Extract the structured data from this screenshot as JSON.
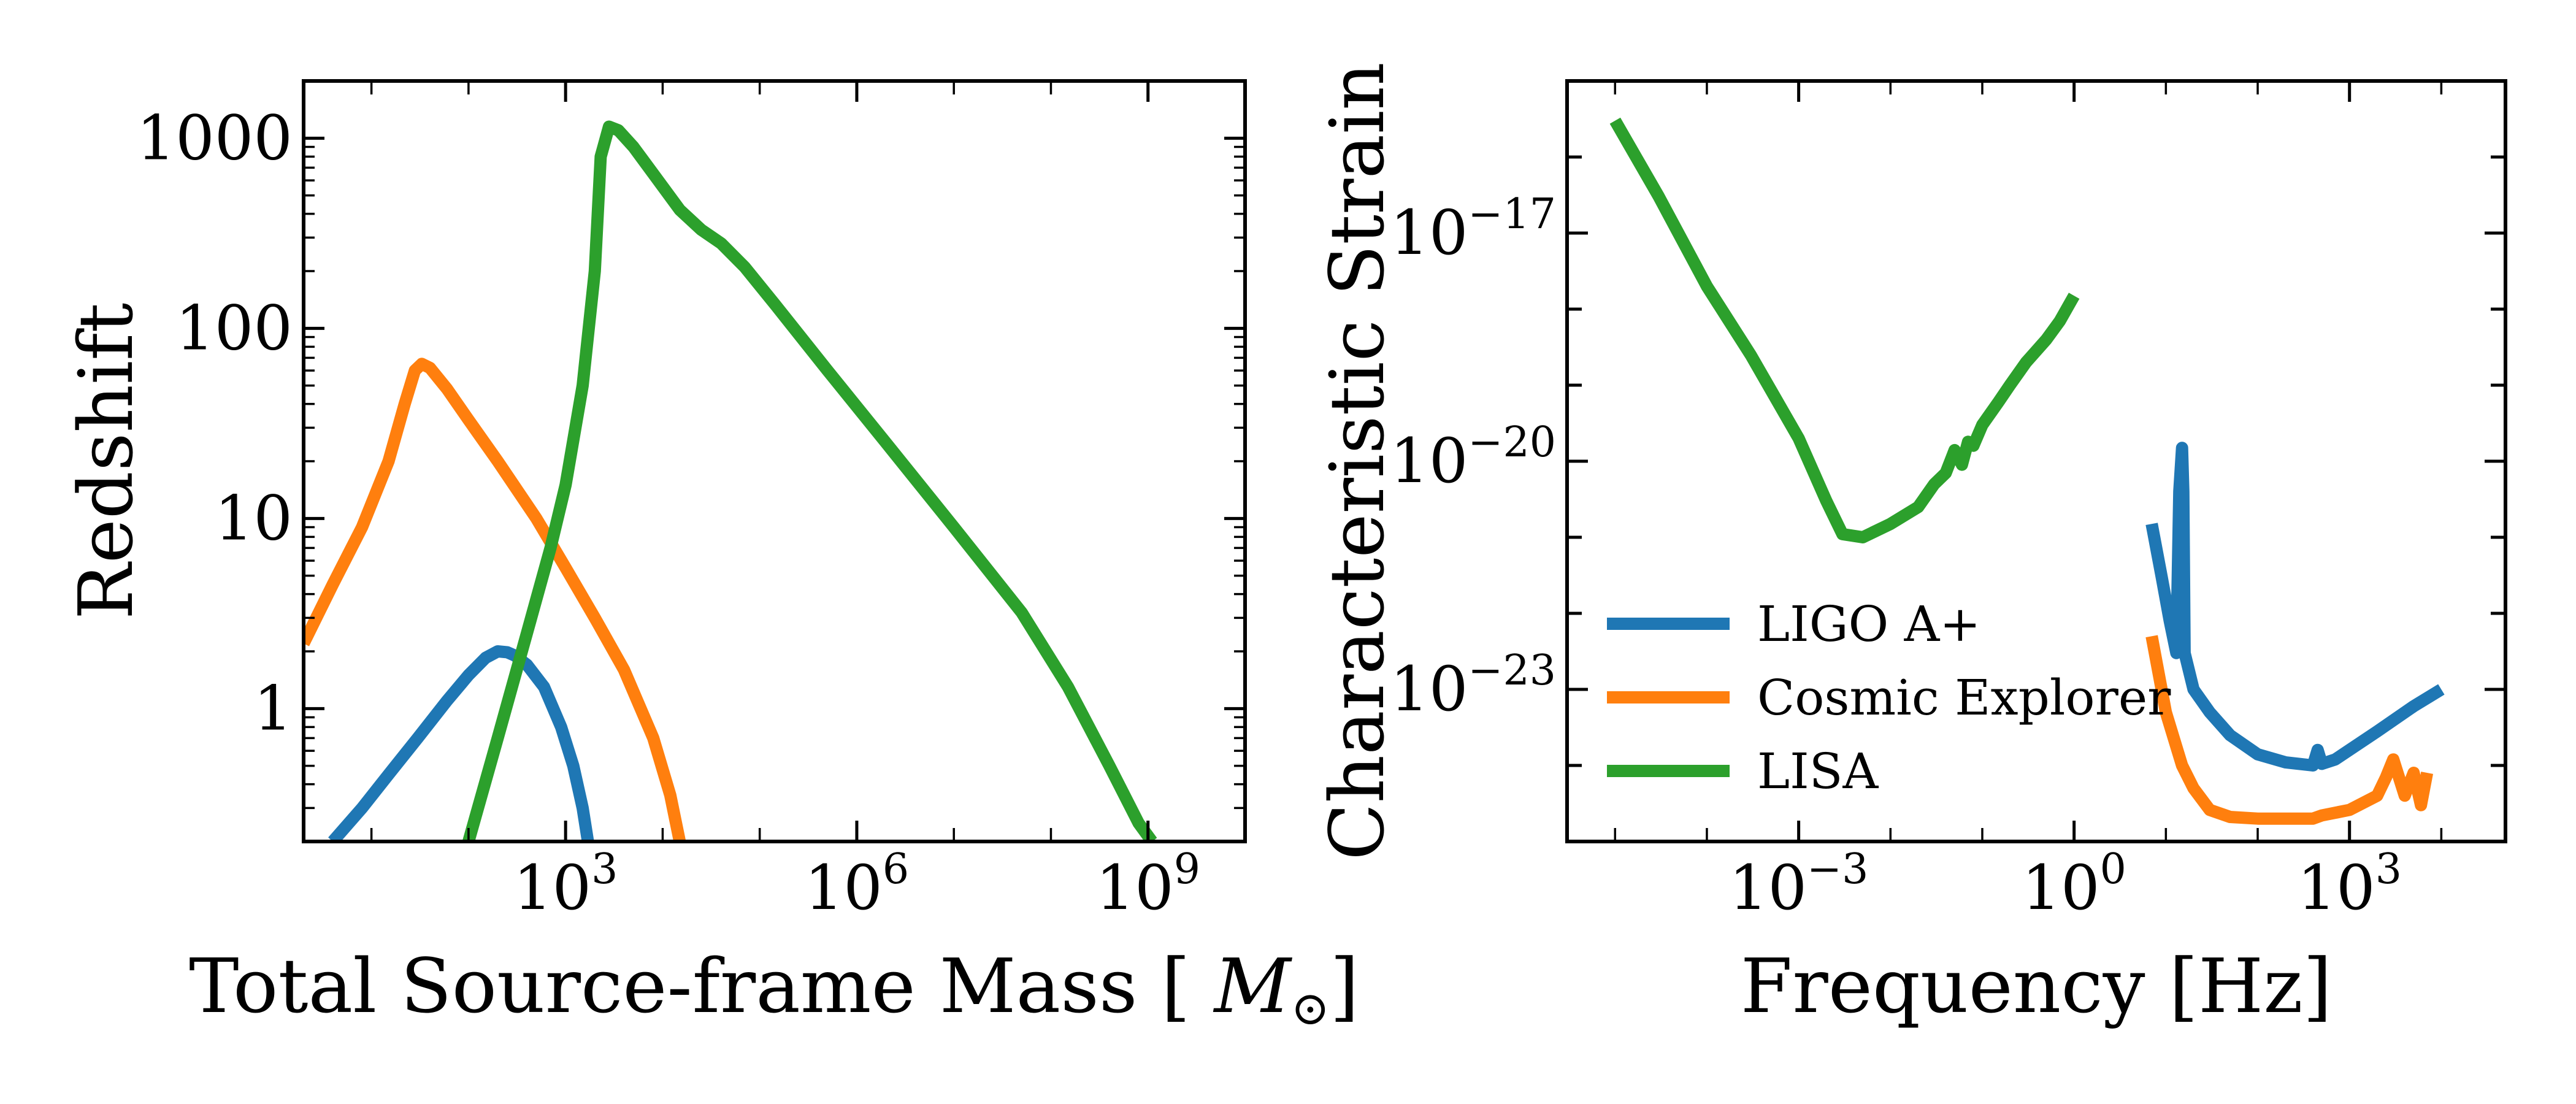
{
  "colors": {
    "blue": "#1f77b4",
    "orange": "#ff7f0e",
    "green": "#2ca02c"
  },
  "chart_data": [
    {
      "type": "line",
      "xlabel": "Total Source-frame Mass [M⊙]",
      "ylabel": "Redshift",
      "xscale": "log",
      "yscale": "log",
      "xlim": [
        2.0,
        10000000000.0
      ],
      "ylim": [
        0.2,
        2000
      ],
      "xticks": [
        {
          "value": 1000,
          "base": "10",
          "exp": "3"
        },
        {
          "value": 1000000,
          "base": "10",
          "exp": "6"
        },
        {
          "value": 1000000000,
          "base": "10",
          "exp": "9"
        }
      ],
      "yticks": [
        {
          "value": 1,
          "label": "1"
        },
        {
          "value": 10,
          "label": "10"
        },
        {
          "value": 100,
          "label": "100"
        },
        {
          "value": 1000,
          "label": "1000"
        }
      ],
      "legend": "none",
      "series": [
        {
          "color": "#1f77b4",
          "x": [
            4,
            8,
            15,
            30,
            60,
            100,
            150,
            200,
            250,
            300,
            400,
            600,
            900,
            1200,
            1500,
            1700
          ],
          "y": [
            0.2,
            0.3,
            0.45,
            0.7,
            1.1,
            1.5,
            1.85,
            2.0,
            1.98,
            1.9,
            1.7,
            1.3,
            0.8,
            0.5,
            0.3,
            0.2
          ]
        },
        {
          "color": "#ff7f0e",
          "x": [
            2,
            4,
            8,
            15,
            22,
            28,
            33,
            40,
            60,
            100,
            200,
            500,
            1000,
            2000,
            4000,
            8000,
            12000,
            15000
          ],
          "y": [
            2.2,
            4.5,
            9,
            20,
            40,
            60,
            65,
            62,
            48,
            33,
            20,
            10,
            5.5,
            3,
            1.6,
            0.7,
            0.35,
            0.2
          ]
        },
        {
          "color": "#2ca02c",
          "x": [
            100,
            200,
            400,
            700,
            1000,
            1500,
            2000,
            2300,
            2800,
            3500,
            5000,
            8000,
            15000,
            25000,
            40000,
            70000,
            150000,
            500000,
            2000000,
            10000000,
            50000000,
            150000000,
            400000000,
            800000000,
            1100000000
          ],
          "y": [
            0.2,
            0.7,
            2.5,
            7,
            15,
            50,
            200,
            800,
            1150,
            1100,
            900,
            650,
            420,
            330,
            280,
            210,
            130,
            60,
            25,
            9,
            3.2,
            1.3,
            0.5,
            0.25,
            0.2
          ]
        }
      ]
    },
    {
      "type": "line",
      "xlabel": "Frequency [Hz]",
      "ylabel": "Characteristic Strain",
      "xscale": "log",
      "yscale": "log",
      "xlim": [
        3e-06,
        50000.0
      ],
      "ylim": [
        1e-25,
        1e-15
      ],
      "xticks": [
        {
          "value": 0.001,
          "base": "10",
          "exp": "−3"
        },
        {
          "value": 1,
          "base": "10",
          "exp": "0"
        },
        {
          "value": 1000,
          "base": "10",
          "exp": "3"
        }
      ],
      "yticks": [
        {
          "value": 1e-23,
          "base": "10",
          "exp": "−23"
        },
        {
          "value": 1e-20,
          "base": "10",
          "exp": "−20"
        },
        {
          "value": 1e-17,
          "base": "10",
          "exp": "−17"
        }
      ],
      "legend": "lower-left",
      "series": [
        {
          "name": "LIGO A+",
          "color": "#1f77b4",
          "x": [
            7,
            9,
            11,
            13,
            14,
            15,
            15.5,
            16,
            20,
            30,
            50,
            100,
            200,
            400,
            450,
            500,
            700,
            1000,
            2000,
            5000,
            10000
          ],
          "y": [
            1.5e-21,
            3e-22,
            8e-23,
            3e-23,
            4e-21,
            1.5e-20,
            4e-21,
            3e-23,
            1e-23,
            5e-24,
            2.5e-24,
            1.4e-24,
            1.1e-24,
            1e-24,
            1.6e-24,
            1.05e-24,
            1.2e-24,
            1.6e-24,
            2.8e-24,
            6e-24,
            1e-23
          ]
        },
        {
          "name": "Cosmic Explorer",
          "color": "#ff7f0e",
          "x": [
            7,
            10,
            15,
            20,
            30,
            50,
            100,
            300,
            400,
            500,
            1000,
            2000,
            2500,
            3000,
            4000,
            5000,
            6000,
            7000
          ],
          "y": [
            5e-23,
            5e-24,
            1e-24,
            5e-25,
            2.6e-25,
            2.1e-25,
            2e-25,
            2e-25,
            2e-25,
            2.2e-25,
            2.6e-25,
            4e-25,
            7e-25,
            1.2e-24,
            4e-25,
            8e-25,
            3e-25,
            8e-25
          ]
        },
        {
          "name": "LISA",
          "color": "#2ca02c",
          "x": [
            1e-05,
            3e-05,
            0.0001,
            0.0003,
            0.001,
            0.002,
            0.003,
            0.005,
            0.01,
            0.02,
            0.03,
            0.04,
            0.05,
            0.06,
            0.07,
            0.08,
            0.1,
            0.15,
            0.2,
            0.3,
            0.5,
            0.7,
            1.0
          ],
          "y": [
            3e-16,
            3e-17,
            2e-18,
            2.5e-19,
            2e-20,
            3e-21,
            1.1e-21,
            1e-21,
            1.5e-21,
            2.5e-21,
            5e-21,
            7e-21,
            1.4e-20,
            9e-21,
            1.8e-20,
            1.6e-20,
            3e-20,
            6e-20,
            1e-19,
            2e-19,
            4e-19,
            7e-19,
            1.5e-18
          ]
        }
      ]
    }
  ]
}
